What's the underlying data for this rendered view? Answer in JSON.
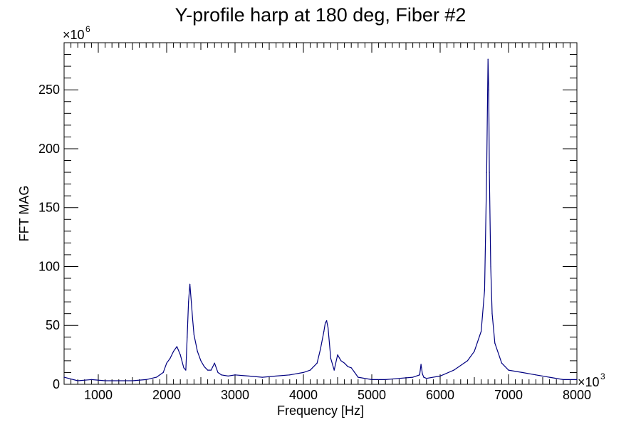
{
  "chart_data": {
    "type": "line",
    "title": "Y-profile harp at 180 deg, Fiber #2",
    "xlabel": "Frequency [Hz]",
    "ylabel": "FFT MAG",
    "x_multiplier_label": "×10",
    "x_multiplier_exp": "3",
    "y_multiplier_label": "×10",
    "y_multiplier_exp": "6",
    "xlim": [
      500,
      8000
    ],
    "ylim": [
      0,
      290
    ],
    "x_ticks": [
      1000,
      2000,
      3000,
      4000,
      5000,
      6000,
      7000,
      8000
    ],
    "y_ticks": [
      0,
      50,
      100,
      150,
      200,
      250
    ],
    "line_color": "#000080",
    "series": [
      {
        "x": [
          500,
          700,
          900,
          1100,
          1300,
          1500,
          1700,
          1850,
          1950,
          2000,
          2050,
          2100,
          2150,
          2200,
          2250,
          2280,
          2300,
          2320,
          2340,
          2360,
          2380,
          2400,
          2450,
          2500,
          2550,
          2600,
          2650,
          2700,
          2750,
          2800,
          2900,
          3000,
          3200,
          3400,
          3600,
          3800,
          4000,
          4100,
          4200,
          4250,
          4300,
          4320,
          4340,
          4360,
          4380,
          4400,
          4450,
          4500,
          4550,
          4600,
          4650,
          4700,
          4750,
          4800,
          5000,
          5200,
          5400,
          5600,
          5700,
          5720,
          5740,
          5760,
          5800,
          6000,
          6200,
          6400,
          6500,
          6600,
          6650,
          6680,
          6700,
          6710,
          6720,
          6740,
          6760,
          6800,
          6900,
          7000,
          7200,
          7400,
          7600,
          7800,
          8000
        ],
        "y": [
          6,
          3,
          4,
          3,
          3,
          3,
          4,
          6,
          10,
          18,
          22,
          28,
          32,
          25,
          14,
          12,
          40,
          70,
          85,
          70,
          55,
          42,
          28,
          20,
          15,
          12,
          12,
          18,
          10,
          8,
          7,
          8,
          7,
          6,
          7,
          8,
          10,
          12,
          18,
          30,
          45,
          52,
          54,
          48,
          35,
          22,
          12,
          25,
          20,
          18,
          15,
          14,
          10,
          6,
          4,
          4,
          5,
          6,
          8,
          17,
          9,
          6,
          5,
          7,
          12,
          20,
          28,
          45,
          80,
          180,
          276,
          250,
          180,
          100,
          60,
          35,
          18,
          12,
          10,
          8,
          6,
          4,
          4
        ]
      }
    ]
  }
}
